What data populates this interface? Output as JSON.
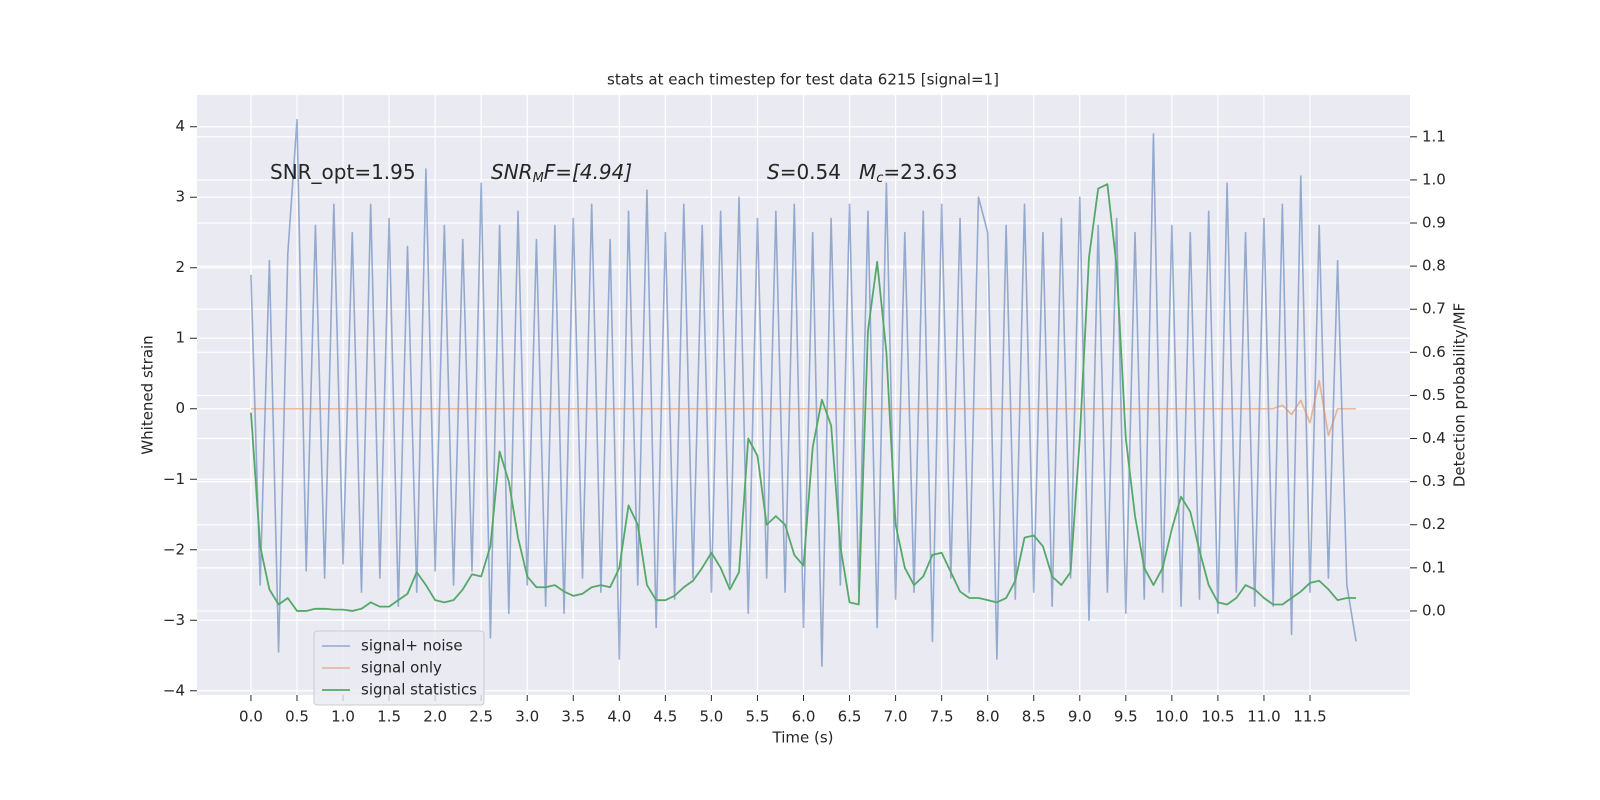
{
  "chart_data": {
    "type": "line",
    "title": "stats at each timestep for test data 6215 [signal=1]",
    "x_label": "Time (s)",
    "y_label": "Whitened strain",
    "y2_label": "Detection probability/MF",
    "annotations": [
      [
        "SNR_opt=1.95"
      ],
      [
        "SNR",
        "M",
        "F=[4.94]"
      ],
      [
        "S",
        "=0.54"
      ],
      [
        "M",
        "c",
        "=23.63"
      ]
    ],
    "grid": true,
    "legend": "lower left",
    "xlim": [
      -0.586,
      12.586
    ],
    "ylim": [
      -4.06,
      4.45
    ],
    "y2lim": [
      -0.195,
      1.197
    ],
    "xticks": [
      {
        "value": 0,
        "label": "0.0"
      },
      {
        "value": 0.5,
        "label": "0.5"
      },
      {
        "value": 1,
        "label": "1.0"
      },
      {
        "value": 1.5,
        "label": "1.5"
      },
      {
        "value": 2,
        "label": "2.0"
      },
      {
        "value": 2.5,
        "label": "2.5"
      },
      {
        "value": 3,
        "label": "3.0"
      },
      {
        "value": 3.5,
        "label": "3.5"
      },
      {
        "value": 4,
        "label": "4.0"
      },
      {
        "value": 4.5,
        "label": "4.5"
      },
      {
        "value": 5,
        "label": "5.0"
      },
      {
        "value": 5.5,
        "label": "5.5"
      },
      {
        "value": 6,
        "label": "6.0"
      },
      {
        "value": 6.5,
        "label": "6.5"
      },
      {
        "value": 7,
        "label": "7.0"
      },
      {
        "value": 7.5,
        "label": "7.5"
      },
      {
        "value": 8,
        "label": "8.0"
      },
      {
        "value": 8.5,
        "label": "8.5"
      },
      {
        "value": 9,
        "label": "9.0"
      },
      {
        "value": 9.5,
        "label": "9.5"
      },
      {
        "value": 10,
        "label": "10.0"
      },
      {
        "value": 10.5,
        "label": "10.5"
      },
      {
        "value": 11,
        "label": "11.0"
      },
      {
        "value": 11.5,
        "label": "11.5"
      }
    ],
    "yticks": [
      {
        "value": -4,
        "label": "−4"
      },
      {
        "value": -3,
        "label": "−3"
      },
      {
        "value": -2,
        "label": "−2"
      },
      {
        "value": -1,
        "label": "−1"
      },
      0,
      1,
      2,
      3,
      4
    ],
    "y2ticks": [
      {
        "value": 0,
        "label": "0.0"
      },
      0.1,
      0.2,
      0.3,
      0.4,
      0.5,
      0.6,
      0.7,
      0.8,
      0.9,
      {
        "value": 1,
        "label": "1.0"
      },
      1.1
    ],
    "x": [
      0,
      0.1,
      0.2,
      0.3,
      0.4,
      0.5,
      0.6,
      0.7,
      0.8,
      0.9,
      1,
      1.1,
      1.2,
      1.3,
      1.4,
      1.5,
      1.6,
      1.7,
      1.8,
      1.9,
      2,
      2.1,
      2.2,
      2.3,
      2.4,
      2.5,
      2.6,
      2.7,
      2.8,
      2.9,
      3,
      3.1,
      3.2,
      3.3,
      3.4,
      3.5,
      3.6,
      3.7,
      3.8,
      3.9,
      4,
      4.1,
      4.2,
      4.3,
      4.4,
      4.5,
      4.6,
      4.7,
      4.8,
      4.9,
      5,
      5.1,
      5.2,
      5.3,
      5.4,
      5.5,
      5.6,
      5.7,
      5.8,
      5.9,
      6,
      6.1,
      6.2,
      6.3,
      6.4,
      6.5,
      6.6,
      6.7,
      6.8,
      6.9,
      7,
      7.1,
      7.2,
      7.3,
      7.4,
      7.5,
      7.6,
      7.7,
      7.8,
      7.9,
      8,
      8.1,
      8.2,
      8.3,
      8.4,
      8.5,
      8.6,
      8.7,
      8.8,
      8.9,
      9,
      9.1,
      9.2,
      9.3,
      9.4,
      9.5,
      9.6,
      9.7,
      9.8,
      9.9,
      10,
      10.1,
      10.2,
      10.3,
      10.4,
      10.5,
      10.6,
      10.7,
      10.8,
      10.9,
      11,
      11.1,
      11.2,
      11.3,
      11.4,
      11.5,
      11.6,
      11.7,
      11.8,
      11.9,
      12
    ],
    "series": [
      {
        "name": "signal+ noise",
        "color": "#4c72b0",
        "values": [
          1.9,
          -2.5,
          2.1,
          -3.45,
          2.2,
          4.1,
          -2.3,
          2.6,
          -2.4,
          2.9,
          -2.2,
          2.5,
          -2.6,
          2.9,
          -2.4,
          2.7,
          -2.8,
          2.3,
          -2.6,
          3.4,
          -2.3,
          2.6,
          -2.5,
          2.4,
          -2.3,
          3.2,
          -3.25,
          2.6,
          -2.9,
          2.8,
          -2.5,
          2.4,
          -2.8,
          2.6,
          -2.9,
          2.7,
          -2.4,
          2.9,
          -2.6,
          2.4,
          -3.55,
          2.8,
          -2.5,
          3.1,
          -3.1,
          2.5,
          -2.7,
          2.9,
          -2.4,
          2.6,
          -2.6,
          2.8,
          -2.5,
          3.0,
          -2.9,
          2.7,
          -2.4,
          2.8,
          -2.6,
          2.9,
          -3.1,
          2.5,
          -3.65,
          2.7,
          -2.5,
          2.9,
          -2.6,
          2.8,
          -3.1,
          3.2,
          -2.7,
          2.5,
          -2.6,
          2.8,
          -3.3,
          2.9,
          -2.4,
          2.7,
          -2.6,
          3.0,
          2.5,
          -3.55,
          2.6,
          -2.7,
          2.9,
          -2.6,
          2.5,
          -2.8,
          2.7,
          -2.4,
          3.0,
          -3.0,
          2.6,
          -2.6,
          2.7,
          -2.9,
          2.5,
          -2.7,
          3.9,
          -2.6,
          2.6,
          -2.8,
          2.5,
          -2.7,
          2.8,
          -2.9,
          3.2,
          -2.6,
          2.5,
          -2.8,
          2.7,
          -2.8,
          2.9,
          -3.2,
          3.3,
          -2.6,
          2.6,
          -2.4,
          2.1,
          -2.5,
          -3.3
        ]
      },
      {
        "name": "signal only",
        "color": "#dd8452",
        "values": [
          0,
          0,
          0,
          0,
          0,
          0,
          0,
          0,
          0,
          0,
          0,
          0,
          0,
          0,
          0,
          0,
          0,
          0,
          0,
          0,
          0,
          0,
          0,
          0,
          0,
          0,
          0,
          0,
          0,
          0,
          0,
          0,
          0,
          0,
          0,
          0,
          0,
          0,
          0,
          0,
          0,
          0,
          0,
          0,
          0,
          0,
          0,
          0,
          0,
          0,
          0,
          0,
          0,
          0,
          0,
          0,
          0,
          0,
          0,
          0,
          0,
          0,
          0,
          0,
          0,
          0,
          0,
          0,
          0,
          0,
          0,
          0,
          0,
          0,
          0,
          0,
          0,
          0,
          0,
          0,
          0,
          0,
          0,
          0,
          0,
          0,
          0,
          0,
          0,
          0,
          0,
          0,
          0,
          0,
          0,
          0,
          0,
          0,
          0,
          0,
          0,
          0,
          0,
          0,
          0,
          0,
          0,
          0,
          0,
          0,
          0,
          0,
          0.05,
          -0.08,
          0.12,
          -0.2,
          0.4,
          -0.38,
          0,
          0,
          0
        ]
      },
      {
        "name": "signal statistics",
        "color": "#55a868",
        "axis": "y2",
        "values": [
          0.46,
          0.15,
          0.05,
          0.015,
          0.03,
          0.0,
          0.0,
          0.005,
          0.005,
          0.003,
          0.003,
          0.0,
          0.005,
          0.02,
          0.01,
          0.01,
          0.025,
          0.04,
          0.09,
          0.06,
          0.025,
          0.02,
          0.025,
          0.05,
          0.085,
          0.08,
          0.15,
          0.37,
          0.3,
          0.17,
          0.08,
          0.055,
          0.055,
          0.06,
          0.045,
          0.035,
          0.04,
          0.055,
          0.06,
          0.055,
          0.1,
          0.245,
          0.2,
          0.06,
          0.025,
          0.025,
          0.035,
          0.055,
          0.07,
          0.1,
          0.135,
          0.1,
          0.05,
          0.09,
          0.4,
          0.36,
          0.2,
          0.22,
          0.2,
          0.13,
          0.105,
          0.38,
          0.49,
          0.43,
          0.15,
          0.02,
          0.015,
          0.65,
          0.81,
          0.6,
          0.2,
          0.1,
          0.06,
          0.08,
          0.13,
          0.135,
          0.09,
          0.045,
          0.03,
          0.03,
          0.025,
          0.02,
          0.03,
          0.07,
          0.17,
          0.175,
          0.15,
          0.08,
          0.06,
          0.09,
          0.4,
          0.82,
          0.98,
          0.99,
          0.8,
          0.4,
          0.22,
          0.1,
          0.06,
          0.1,
          0.19,
          0.265,
          0.23,
          0.14,
          0.06,
          0.02,
          0.015,
          0.03,
          0.06,
          0.05,
          0.03,
          0.015,
          0.015,
          0.03,
          0.045,
          0.065,
          0.07,
          0.05,
          0.025,
          0.03,
          0.03
        ]
      }
    ]
  }
}
